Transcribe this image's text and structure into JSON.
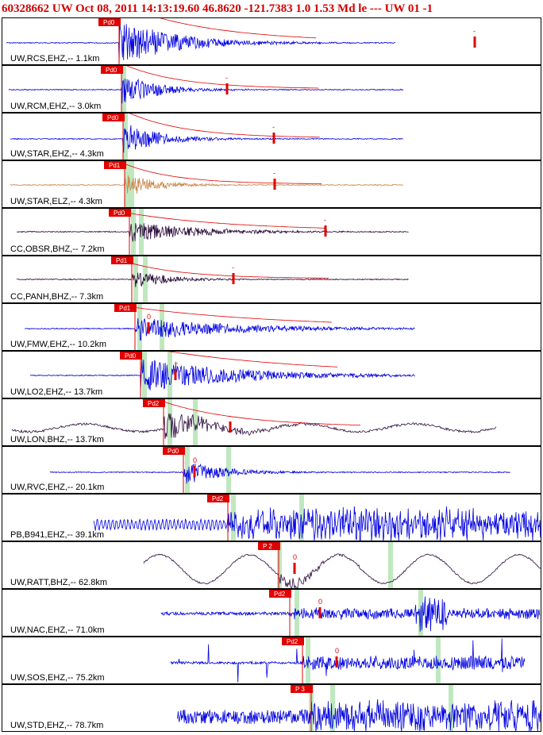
{
  "header": {
    "text": "60328662 UW Oct 08, 2011 14:13:19.60    46.8620 -121.7383  1.0 1.53 Md le --- UW 01  -1"
  },
  "colors": {
    "header": "#d40000",
    "pick": "#e00000",
    "coda": "#e00000",
    "window": "#bfe8bf"
  },
  "traces": [
    {
      "label": "UW,RCS,EHZ,-- 1.1km",
      "color": "#0000e0",
      "picks": [
        {
          "label": "Pd0",
          "kind": "P"
        }
      ],
      "coda_label": "-"
    },
    {
      "label": "UW,RCM,EHZ,-- 3.0km",
      "color": "#0000e0",
      "picks": [
        {
          "label": "Pd0",
          "kind": "P"
        }
      ],
      "coda_label": "-"
    },
    {
      "label": "UW,STAR,EHZ,-- 4.3km",
      "color": "#0000e0",
      "picks": [
        {
          "label": "Pd0",
          "kind": "P"
        }
      ],
      "coda_label": "-"
    },
    {
      "label": "UW,STAR,ELZ,-- 4.3km",
      "color": "#c8864a",
      "picks": [
        {
          "label": "Pd1",
          "kind": "P"
        }
      ],
      "coda_label": "-"
    },
    {
      "label": "CC,OBSR,BHZ,-- 7.2km",
      "color": "#2a0a3a",
      "picks": [
        {
          "label": "Pd0",
          "kind": "P"
        }
      ],
      "coda_label": "-"
    },
    {
      "label": "CC,PANH,BHZ,-- 7.3km",
      "color": "#2a0a3a",
      "picks": [
        {
          "label": "Pd1",
          "kind": "P"
        }
      ],
      "coda_label": "-"
    },
    {
      "label": "UW,FMW,EHZ,-- 10.2km",
      "color": "#0000e0",
      "picks": [
        {
          "label": "Pd1",
          "kind": "P"
        }
      ],
      "coda_label": "0"
    },
    {
      "label": "UW,LO2,EHZ,-- 13.7km",
      "color": "#0000e0",
      "picks": [
        {
          "label": "Pd0",
          "kind": "P"
        }
      ],
      "coda_label": "+"
    },
    {
      "label": "UW,LON,BHZ,-- 13.7km",
      "color": "#2a0a3a",
      "picks": [
        {
          "label": "Pd2",
          "kind": "P"
        }
      ],
      "coda_label": "-"
    },
    {
      "label": "UW,RVC,EHZ,-- 20.1km",
      "color": "#0000e0",
      "picks": [
        {
          "label": "Pd0",
          "kind": "P"
        }
      ],
      "coda_label": "0"
    },
    {
      "label": "PB,B941,EHZ,-- 39.1km",
      "color": "#0000e0",
      "picks": [
        {
          "label": "Pd2",
          "kind": "P"
        }
      ],
      "coda_label": ""
    },
    {
      "label": "UW,RATT,BHZ,-- 62.8km",
      "color": "#2a0a3a",
      "picks": [
        {
          "label": "P 2",
          "kind": "P"
        }
      ],
      "coda_label": "0"
    },
    {
      "label": "UW,NAC,EHZ,-- 71.0km",
      "color": "#0000e0",
      "picks": [
        {
          "label": "Pd2",
          "kind": "P"
        }
      ],
      "coda_label": "0"
    },
    {
      "label": "UW,SOS,EHZ,-- 75.2km",
      "color": "#0000e0",
      "picks": [
        {
          "label": "Pd2",
          "kind": "P"
        }
      ],
      "coda_label": "0"
    },
    {
      "label": "UW,STD,EHZ,-- 78.7km",
      "color": "#0000e0",
      "picks": [
        {
          "label": "P 3",
          "kind": "P"
        }
      ],
      "coda_label": ""
    }
  ]
}
